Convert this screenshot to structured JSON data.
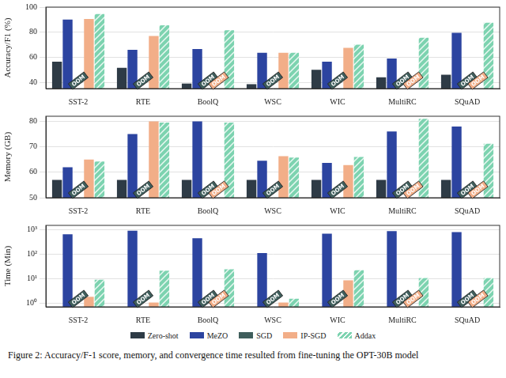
{
  "chart_data": [
    {
      "type": "bar",
      "ylabel": "Accuracy/F1 (%)",
      "categories": [
        "SST-2",
        "RTE",
        "BoolQ",
        "WSC",
        "WIC",
        "MultiRC",
        "SQuAD"
      ],
      "series": [
        {
          "name": "Zero-shot",
          "color": "#2e3b46",
          "values": [
            56.5,
            51.5,
            39,
            38.5,
            50,
            44,
            46
          ]
        },
        {
          "name": "MeZO",
          "color": "#2c44a0",
          "values": [
            90,
            66,
            66.5,
            63.5,
            56.5,
            59,
            79.5
          ]
        },
        {
          "name": "SGD",
          "color": "#3f5e5c",
          "values": [
            null,
            null,
            null,
            null,
            null,
            null,
            null
          ]
        },
        {
          "name": "IP-SGD",
          "color": "#f2ae88",
          "values": [
            90.5,
            77,
            null,
            63.5,
            67.5,
            null,
            null
          ]
        },
        {
          "name": "Addax",
          "color": "#7dd3b0",
          "values": [
            94.5,
            85.5,
            81.5,
            63.5,
            70,
            75.5,
            87.5
          ]
        }
      ],
      "ylim": [
        35,
        100
      ],
      "yticks": [
        40,
        60,
        80,
        100
      ],
      "grid": true,
      "annotations": [
        {
          "text": "OOM",
          "series": "SGD",
          "category": "SST-2"
        },
        {
          "text": "OOM",
          "series": "SGD",
          "category": "RTE"
        },
        {
          "text": "OOM",
          "series": "SGD",
          "category": "BoolQ"
        },
        {
          "text": "OOM",
          "series": "SGD",
          "category": "WSC"
        },
        {
          "text": "OOM",
          "series": "SGD",
          "category": "WIC"
        },
        {
          "text": "OOM",
          "series": "SGD",
          "category": "MultiRC"
        },
        {
          "text": "OOM",
          "series": "SGD",
          "category": "SQuAD"
        },
        {
          "text": "OOM",
          "series": "IP-SGD",
          "category": "BoolQ"
        },
        {
          "text": "OOM",
          "series": "IP-SGD",
          "category": "MultiRC"
        },
        {
          "text": "OOM",
          "series": "IP-SGD",
          "category": "SQuAD"
        }
      ]
    },
    {
      "type": "bar",
      "ylabel": "Memory (GB)",
      "categories": [
        "SST-2",
        "RTE",
        "BoolQ",
        "WSC",
        "WIC",
        "MultiRC",
        "SQuAD"
      ],
      "series": [
        {
          "name": "Zero-shot",
          "color": "#2e3b46",
          "values": [
            57,
            57,
            57,
            57,
            57,
            57,
            57
          ]
        },
        {
          "name": "MeZO",
          "color": "#2c44a0",
          "values": [
            62,
            75,
            80,
            64.5,
            63.7,
            76,
            78
          ]
        },
        {
          "name": "SGD",
          "color": "#3f5e5c",
          "values": [
            null,
            null,
            null,
            null,
            null,
            null,
            null
          ]
        },
        {
          "name": "IP-SGD",
          "color": "#f2ae88",
          "values": [
            65,
            80,
            null,
            66.3,
            62.8,
            null,
            null
          ]
        },
        {
          "name": "Addax",
          "color": "#7dd3b0",
          "values": [
            64.2,
            79.5,
            79.5,
            65.8,
            66,
            81,
            71.2
          ]
        }
      ],
      "ylim": [
        50,
        82
      ],
      "yticks": [
        50,
        60,
        70,
        80
      ],
      "grid": true,
      "annotations": [
        {
          "text": "OOM",
          "series": "SGD",
          "category": "SST-2"
        },
        {
          "text": "OOM",
          "series": "SGD",
          "category": "RTE"
        },
        {
          "text": "OOM",
          "series": "SGD",
          "category": "BoolQ"
        },
        {
          "text": "OOM",
          "series": "SGD",
          "category": "WSC"
        },
        {
          "text": "OOM",
          "series": "SGD",
          "category": "WIC"
        },
        {
          "text": "OOM",
          "series": "SGD",
          "category": "MultiRC"
        },
        {
          "text": "OOM",
          "series": "SGD",
          "category": "SQuAD"
        },
        {
          "text": "OOM",
          "series": "IP-SGD",
          "category": "BoolQ"
        },
        {
          "text": "OOM",
          "series": "IP-SGD",
          "category": "MultiRC"
        },
        {
          "text": "OOM",
          "series": "IP-SGD",
          "category": "SQuAD"
        }
      ]
    },
    {
      "type": "bar",
      "ylabel": "Time (Min)",
      "log": "y",
      "categories": [
        "SST-2",
        "RTE",
        "BoolQ",
        "WSC",
        "WIC",
        "MultiRC",
        "SQuAD"
      ],
      "series": [
        {
          "name": "Zero-shot",
          "color": "#2e3b46",
          "values": [
            null,
            null,
            null,
            null,
            null,
            null,
            null
          ]
        },
        {
          "name": "MeZO",
          "color": "#2c44a0",
          "values": [
            650,
            900,
            450,
            110,
            680,
            880,
            800
          ]
        },
        {
          "name": "SGD",
          "color": "#3f5e5c",
          "values": [
            null,
            null,
            null,
            null,
            null,
            null,
            null
          ]
        },
        {
          "name": "IP-SGD",
          "color": "#f2ae88",
          "values": [
            1.8,
            1.05,
            null,
            1.05,
            8.5,
            null,
            null
          ]
        },
        {
          "name": "Addax",
          "color": "#7dd3b0",
          "values": [
            9,
            21,
            24,
            1.5,
            22,
            10.5,
            10.5
          ]
        }
      ],
      "ylim": [
        0.7,
        1500
      ],
      "yticks": [
        {
          "value": 1,
          "label": "10⁰"
        },
        {
          "value": 10,
          "label": "10¹"
        },
        {
          "value": 100,
          "label": "10²"
        },
        {
          "value": 1000,
          "label": "10³"
        }
      ],
      "grid": true,
      "legend": "bottom",
      "annotations": [
        {
          "text": "OOM",
          "series": "SGD",
          "category": "SST-2"
        },
        {
          "text": "OOM",
          "series": "SGD",
          "category": "RTE"
        },
        {
          "text": "OOM",
          "series": "SGD",
          "category": "BoolQ"
        },
        {
          "text": "OOM",
          "series": "SGD",
          "category": "WSC"
        },
        {
          "text": "OOM",
          "series": "SGD",
          "category": "WIC"
        },
        {
          "text": "OOM",
          "series": "SGD",
          "category": "MultiRC"
        },
        {
          "text": "OOM",
          "series": "SGD",
          "category": "SQuAD"
        },
        {
          "text": "OOM",
          "series": "IP-SGD",
          "category": "BoolQ"
        },
        {
          "text": "OOM",
          "series": "IP-SGD",
          "category": "MultiRC"
        },
        {
          "text": "OOM",
          "series": "IP-SGD",
          "category": "SQuAD"
        }
      ]
    }
  ],
  "caption": "Figure 2: Accuracy/F-1 score, memory, and convergence time resulted from fine-tuning the OPT-30B model"
}
